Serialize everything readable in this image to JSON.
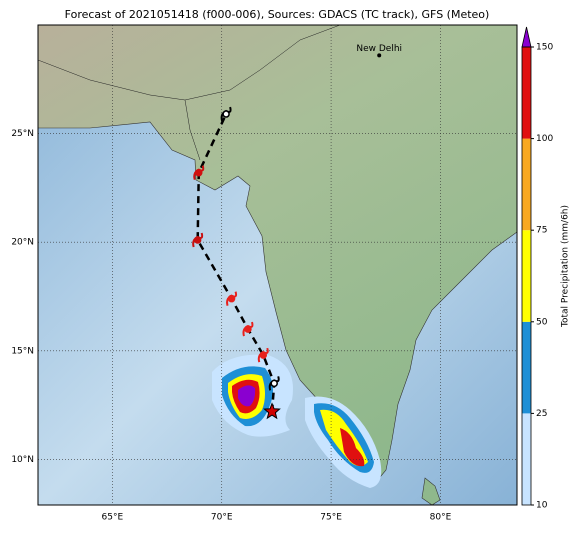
{
  "title": "Forecast of 2021051418 (f000-006), Sources: GDACS (TC track), GFS (Meteo)",
  "map": {
    "xlim": [
      61.6,
      83.5
    ],
    "ylim": [
      7.9,
      30
    ],
    "xticks": [
      {
        "value": 65,
        "label": "65°E"
      },
      {
        "value": 70,
        "label": "70°E"
      },
      {
        "value": 75,
        "label": "75°E"
      },
      {
        "value": 80,
        "label": "80°E"
      }
    ],
    "yticks": [
      {
        "value": 10,
        "label": "10°N"
      },
      {
        "value": 15,
        "label": "15°N"
      },
      {
        "value": 20,
        "label": "20°N"
      },
      {
        "value": 25,
        "label": "25°N"
      }
    ],
    "grid": true
  },
  "city": {
    "name": "New Delhi",
    "lon": 77.2,
    "lat": 28.6
  },
  "track": {
    "lon": [
      72.3,
      72.4,
      71.9,
      71.2,
      70.45,
      68.9,
      68.95,
      70.2
    ],
    "lat": [
      12.2,
      13.5,
      14.8,
      16.0,
      17.4,
      20.1,
      23.2,
      25.9
    ],
    "colors": [
      "#d00000",
      "#000000",
      "#e8201c",
      "#e8201c",
      "#e8201c",
      "#c81010",
      "#d01010",
      "#000000"
    ]
  },
  "colorbar": {
    "label": "Total Precipitation (mm/6h)",
    "ticks": [
      10,
      25,
      50,
      75,
      100,
      150
    ],
    "colors": [
      "#c8e4ff",
      "#1e8fd6",
      "#ffff00",
      "#f8a820",
      "#e01010"
    ],
    "extend_color": "#8a00d0"
  }
}
